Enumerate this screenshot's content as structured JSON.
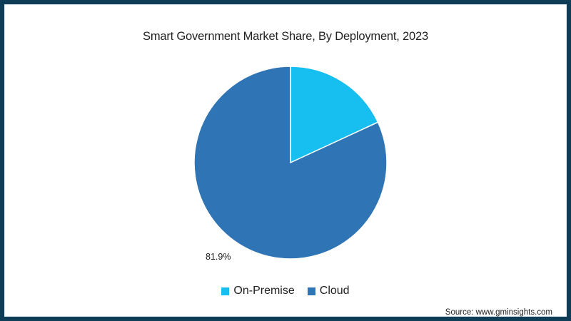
{
  "chart_data": {
    "type": "pie",
    "title": "Smart Government Market Share, By Deployment, 2023",
    "categories": [
      "On-Premise",
      "Cloud"
    ],
    "values": [
      18.1,
      81.9
    ],
    "unit": "%",
    "colors": [
      "#16bff0",
      "#2f74b5"
    ],
    "data_labels": [
      {
        "category": "Cloud",
        "text": "81.9%"
      }
    ],
    "legend_position": "bottom",
    "start_angle": "12 o'clock, clockwise",
    "source": "Source: www.gminsights.com"
  },
  "chart": {
    "title": "Smart Government Market Share, By Deployment, 2023",
    "data_label_cloud": "81.9%",
    "legend": [
      {
        "label": "On-Premise",
        "color": "#16bff0"
      },
      {
        "label": "Cloud",
        "color": "#2f74b5"
      }
    ],
    "source": "Source: www.gminsights.com"
  },
  "colors": {
    "frame": "#0f3d57",
    "background": "#ffffff",
    "on_premise": "#16bff0",
    "cloud": "#2f74b5"
  }
}
